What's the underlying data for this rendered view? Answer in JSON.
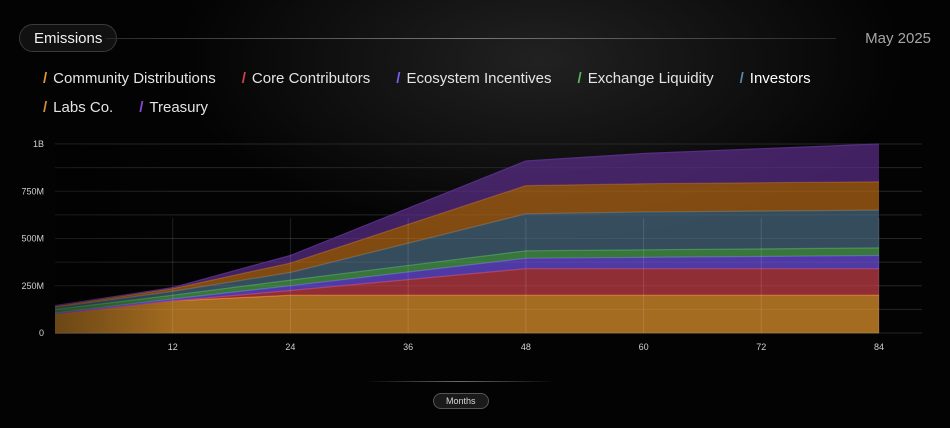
{
  "header": {
    "title": "Emissions",
    "date": "May 2025"
  },
  "colors": {
    "background": "#030303",
    "community": "#e3962d",
    "core": "#c8404a",
    "ecosystem": "#6d4fe0",
    "exchange": "#4ea352",
    "investors": "#4a6a80",
    "labs": "#b26616",
    "treasury": "#5a2e88"
  },
  "chart_data": {
    "type": "area",
    "stacked": true,
    "x": [
      0,
      12,
      24,
      48,
      60,
      72,
      84
    ],
    "xlim": [
      0,
      84
    ],
    "ylim": [
      0,
      1000
    ],
    "xlabel": "Months",
    "ylabel": "",
    "x_ticks": [
      "12",
      "24",
      "36",
      "48",
      "60",
      "72",
      "84"
    ],
    "x_tick_values": [
      12,
      24,
      36,
      48,
      60,
      72,
      84
    ],
    "y_ticks": [
      "0",
      "250M",
      "500M",
      "750M",
      "1B"
    ],
    "y_tick_values": [
      0,
      250,
      500,
      750,
      1000
    ],
    "units": "millions of tokens",
    "series": [
      {
        "name": "Community Distributions",
        "color": "#e3962d",
        "values": [
          100,
          170,
          200,
          200,
          200,
          200,
          200
        ]
      },
      {
        "name": "Core Contributors",
        "color": "#c8404a",
        "values": [
          0,
          0,
          25,
          140,
          140,
          140,
          140
        ]
      },
      {
        "name": "Ecosystem Incentives",
        "color": "#6d4fe0",
        "values": [
          5,
          10,
          25,
          55,
          60,
          65,
          70
        ]
      },
      {
        "name": "Exchange Liquidity",
        "color": "#4ea352",
        "values": [
          20,
          20,
          30,
          40,
          40,
          40,
          40
        ]
      },
      {
        "name": "Investors",
        "color": "#4a6a80",
        "values": [
          10,
          20,
          40,
          195,
          200,
          200,
          200
        ]
      },
      {
        "name": "Labs Co.",
        "color": "#b26616",
        "values": [
          5,
          15,
          50,
          150,
          150,
          150,
          150
        ]
      },
      {
        "name": "Treasury",
        "color": "#5a2e88",
        "values": [
          5,
          5,
          40,
          130,
          160,
          180,
          200
        ]
      }
    ]
  },
  "legend": [
    {
      "label": "Community Distributions",
      "color": "#e3962d"
    },
    {
      "label": "Core Contributors",
      "color": "#d6404a"
    },
    {
      "label": "Ecosystem Incentives",
      "color": "#7a5cf0"
    },
    {
      "label": "Exchange Liquidity",
      "color": "#58b85c"
    },
    {
      "label": "Investors",
      "color": "#5a86a8"
    },
    {
      "label": "Labs Co.",
      "color": "#d08a3a"
    },
    {
      "label": "Treasury",
      "color": "#8a4ad8"
    }
  ]
}
